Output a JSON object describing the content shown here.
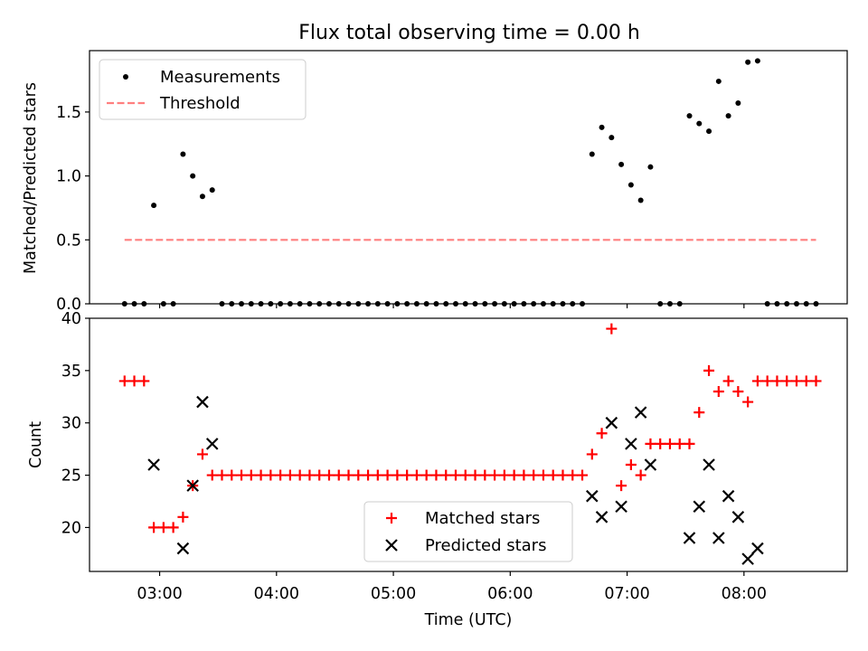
{
  "figure": {
    "title": "Flux total observing time = 0.00 h"
  },
  "chart_data": [
    {
      "type": "scatter",
      "ylabel": "Matched/Predicted stars",
      "ylim": [
        0,
        1.98
      ],
      "xlim": [
        "02:24",
        "08:53"
      ],
      "yticks": [
        0.0,
        0.5,
        1.0,
        1.5
      ],
      "ytick_labels": [
        "0.0",
        "0.5",
        "1.0",
        "1.5"
      ],
      "legend_position": "upper left",
      "grid": false,
      "series": [
        {
          "name": "Measurements",
          "marker": "dot",
          "color": "#000000",
          "x": [
            "02:42",
            "02:47",
            "02:52",
            "02:57",
            "03:02",
            "03:07",
            "03:12",
            "03:17",
            "03:22",
            "03:27",
            "03:32",
            "03:37",
            "03:42",
            "03:47",
            "03:52",
            "03:57",
            "04:02",
            "04:07",
            "04:12",
            "04:17",
            "04:22",
            "04:27",
            "04:32",
            "04:37",
            "04:42",
            "04:47",
            "04:52",
            "04:57",
            "05:02",
            "05:07",
            "05:12",
            "05:17",
            "05:22",
            "05:27",
            "05:32",
            "05:37",
            "05:42",
            "05:47",
            "05:52",
            "05:57",
            "06:02",
            "06:07",
            "06:12",
            "06:17",
            "06:22",
            "06:27",
            "06:32",
            "06:37",
            "06:42",
            "06:47",
            "06:52",
            "06:57",
            "07:02",
            "07:07",
            "07:12",
            "07:17",
            "07:22",
            "07:27",
            "07:32",
            "07:37",
            "07:42",
            "07:47",
            "07:52",
            "07:57",
            "08:02",
            "08:07",
            "08:12",
            "08:17",
            "08:22",
            "08:27",
            "08:32",
            "08:37"
          ],
          "y": [
            0,
            0,
            0,
            0.77,
            0,
            0,
            1.17,
            1.0,
            0.84,
            0.89,
            0,
            0,
            0,
            0,
            0,
            0,
            0,
            0,
            0,
            0,
            0,
            0,
            0,
            0,
            0,
            0,
            0,
            0,
            0,
            0,
            0,
            0,
            0,
            0,
            0,
            0,
            0,
            0,
            0,
            0,
            0,
            0,
            0,
            0,
            0,
            0,
            0,
            0,
            1.17,
            1.38,
            1.3,
            1.09,
            0.93,
            0.81,
            1.07,
            0,
            0,
            0,
            1.47,
            1.41,
            1.35,
            1.74,
            1.47,
            1.57,
            1.89,
            1.9,
            0,
            0,
            0,
            0,
            0,
            0
          ]
        },
        {
          "name": "Threshold",
          "marker": "dashed-line",
          "color": "#ff7f7f",
          "x": [
            "02:42",
            "08:37"
          ],
          "y": [
            0.5,
            0.5
          ]
        }
      ]
    },
    {
      "type": "scatter",
      "xlabel": "Time (UTC)",
      "ylabel": "Count",
      "ylim": [
        15.8,
        40
      ],
      "xlim": [
        "02:24",
        "08:53"
      ],
      "xticks": [
        "03:00",
        "04:00",
        "05:00",
        "06:00",
        "07:00",
        "08:00"
      ],
      "yticks": [
        20,
        25,
        30,
        35,
        40
      ],
      "ytick_labels": [
        "20",
        "25",
        "30",
        "35",
        "40"
      ],
      "legend_position": "lower center",
      "grid": false,
      "series": [
        {
          "name": "Matched stars",
          "marker": "plus",
          "color": "#ff0000",
          "x": [
            "02:42",
            "02:47",
            "02:52",
            "02:57",
            "03:02",
            "03:07",
            "03:12",
            "03:17",
            "03:22",
            "03:27",
            "03:32",
            "03:37",
            "03:42",
            "03:47",
            "03:52",
            "03:57",
            "04:02",
            "04:07",
            "04:12",
            "04:17",
            "04:22",
            "04:27",
            "04:32",
            "04:37",
            "04:42",
            "04:47",
            "04:52",
            "04:57",
            "05:02",
            "05:07",
            "05:12",
            "05:17",
            "05:22",
            "05:27",
            "05:32",
            "05:37",
            "05:42",
            "05:47",
            "05:52",
            "05:57",
            "06:02",
            "06:07",
            "06:12",
            "06:17",
            "06:22",
            "06:27",
            "06:32",
            "06:37",
            "06:42",
            "06:47",
            "06:52",
            "06:57",
            "07:02",
            "07:07",
            "07:12",
            "07:17",
            "07:22",
            "07:27",
            "07:32",
            "07:37",
            "07:42",
            "07:47",
            "07:52",
            "07:57",
            "08:02",
            "08:07",
            "08:12",
            "08:17",
            "08:22",
            "08:27",
            "08:32",
            "08:37"
          ],
          "y": [
            34,
            34,
            34,
            20,
            20,
            20,
            21,
            24,
            27,
            25,
            25,
            25,
            25,
            25,
            25,
            25,
            25,
            25,
            25,
            25,
            25,
            25,
            25,
            25,
            25,
            25,
            25,
            25,
            25,
            25,
            25,
            25,
            25,
            25,
            25,
            25,
            25,
            25,
            25,
            25,
            25,
            25,
            25,
            25,
            25,
            25,
            25,
            25,
            27,
            29,
            39,
            24,
            26,
            25,
            28,
            28,
            28,
            28,
            28,
            31,
            35,
            33,
            34,
            33,
            32,
            34,
            34,
            34,
            34,
            34,
            34,
            34
          ]
        },
        {
          "name": "Predicted stars",
          "marker": "x",
          "color": "#000000",
          "x": [
            "02:57",
            "03:12",
            "03:17",
            "03:22",
            "03:27",
            "06:42",
            "06:47",
            "06:52",
            "06:57",
            "07:02",
            "07:07",
            "07:12",
            "07:32",
            "07:37",
            "07:42",
            "07:47",
            "07:52",
            "07:57",
            "08:02",
            "08:07"
          ],
          "y": [
            26,
            18,
            24,
            32,
            28,
            23,
            21,
            30,
            22,
            28,
            31,
            26,
            19,
            22,
            26,
            19,
            23,
            21,
            17,
            18
          ]
        }
      ]
    }
  ]
}
